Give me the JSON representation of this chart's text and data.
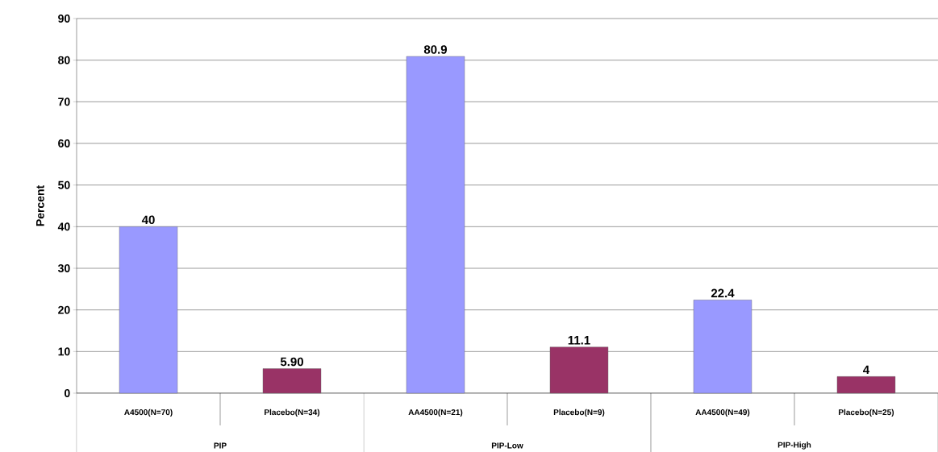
{
  "chart_data": {
    "type": "bar",
    "ylabel": "Percent",
    "categories": [
      "A4500(N=70)",
      "Placebo(N=34)",
      "AA4500(N=21)",
      "Placebo(N=9)",
      "AA4500(N=49)",
      "Placebo(N=25)"
    ],
    "values": [
      40,
      5.9,
      80.9,
      11.1,
      22.4,
      4
    ],
    "colors": [
      "#9999ff",
      "#993366",
      "#9999ff",
      "#993366",
      "#9999ff",
      "#993366"
    ],
    "value_labels": [
      "40",
      "5.90",
      "80.9",
      "11.1",
      "22.4",
      "4"
    ],
    "annotations": [
      "PIP",
      "PIP-Low",
      "PIP-High"
    ],
    "ylim": [
      0,
      90
    ],
    "yticks": [
      0,
      10,
      20,
      30,
      40,
      50,
      60,
      70,
      80,
      90
    ],
    "grid": "y"
  }
}
